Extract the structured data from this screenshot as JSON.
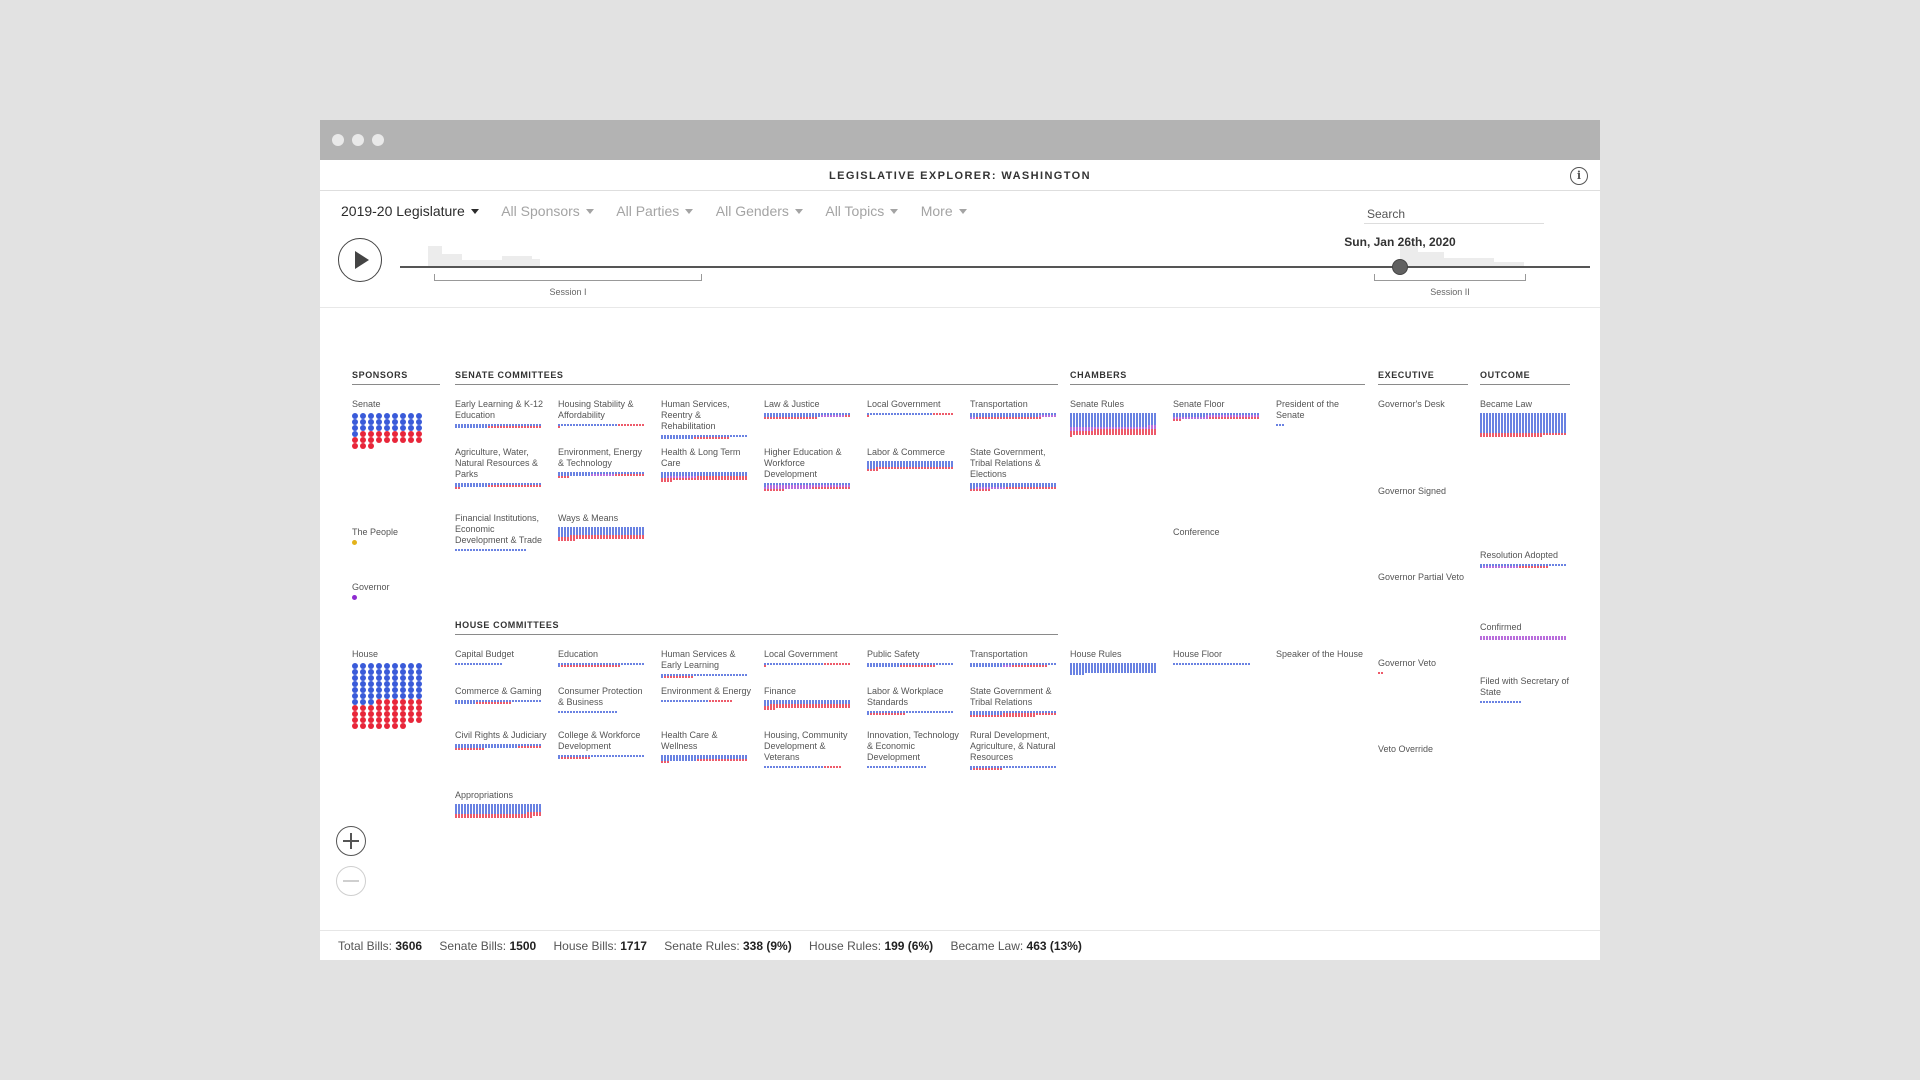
{
  "app_title": "LEGISLATIVE EXPLORER: WASHINGTON",
  "colors": {
    "dem": "#3a5bd9",
    "rep": "#e8263a",
    "other": "#a33fd1",
    "people": "#e3b21b",
    "governor": "#8e2bd0"
  },
  "filters": [
    {
      "label": "2019-20 Legislature"
    },
    {
      "label": "All Sponsors"
    },
    {
      "label": "All Parties"
    },
    {
      "label": "All Genders"
    },
    {
      "label": "All Topics"
    },
    {
      "label": "More"
    }
  ],
  "search": {
    "placeholder": "Search"
  },
  "timeline": {
    "date": "Sun, Jan 26th, 2020",
    "session1": "Session I",
    "session2": "Session II"
  },
  "sections": {
    "sponsors": "SPONSORS",
    "senate_committees": "SENATE COMMITTEES",
    "house_committees": "HOUSE COMMITTEES",
    "chambers": "CHAMBERS",
    "executive": "EXECUTIVE",
    "outcome": "OUTCOME"
  },
  "sponsors": {
    "senate": {
      "label": "Senate",
      "dem": 28,
      "rep": 20
    },
    "people": {
      "label": "The People"
    },
    "governor": {
      "label": "Governor"
    },
    "house": {
      "label": "House",
      "dem": 57,
      "rep": 40
    }
  },
  "senate_committees": [
    {
      "label": "Early Learning & K-12 Education",
      "b": 40,
      "r": 18,
      "p": 0
    },
    {
      "label": "Housing Stability & Affordability",
      "b": 20,
      "r": 10,
      "p": 0
    },
    {
      "label": "Human Services, Reentry & Rehabilitation",
      "b": 40,
      "r": 12,
      "p": 0
    },
    {
      "label": "Law & Justice",
      "b": 48,
      "r": 20,
      "p": 8
    },
    {
      "label": "Local Government",
      "b": 22,
      "r": 8,
      "p": 0
    },
    {
      "label": "Transportation",
      "b": 52,
      "r": 22,
      "p": 8
    },
    {
      "label": "Agriculture, Water, Natural Resources & Parks",
      "b": 40,
      "r": 20,
      "p": 0
    },
    {
      "label": "Environment, Energy & Technology",
      "b": 40,
      "r": 14,
      "p": 8
    },
    {
      "label": "Health & Long Term Care",
      "b": 60,
      "r": 50,
      "p": 10
    },
    {
      "label": "Higher Education & Workforce Development",
      "b": 30,
      "r": 20,
      "p": 44
    },
    {
      "label": "Labor & Commerce",
      "b": 90,
      "r": 30,
      "p": 0
    },
    {
      "label": "State Government, Tribal Relations & Elections",
      "b": 60,
      "r": 24,
      "p": 10
    },
    {
      "label": "Financial Institutions, Economic Development & Trade",
      "b": 24,
      "r": 0,
      "p": 0
    },
    {
      "label": "Ways & Means",
      "b": 120,
      "r": 60,
      "p": 0
    }
  ],
  "house_committees": [
    {
      "label": "Capital Budget",
      "b": 16,
      "r": 0,
      "p": 0
    },
    {
      "label": "Education",
      "b": 30,
      "r": 20,
      "p": 0
    },
    {
      "label": "Human Services & Early Learning",
      "b": 30,
      "r": 10,
      "p": 0
    },
    {
      "label": "Local Government",
      "b": 20,
      "r": 10,
      "p": 0
    },
    {
      "label": "Public Safety",
      "b": 40,
      "r": 12,
      "p": 0
    },
    {
      "label": "Transportation",
      "b": 40,
      "r": 12,
      "p": 3
    },
    {
      "label": "Commerce & Gaming",
      "b": 36,
      "r": 12,
      "p": 0
    },
    {
      "label": "Consumer Protection & Business",
      "b": 20,
      "r": 0,
      "p": 0
    },
    {
      "label": "Environment & Energy",
      "b": 16,
      "r": 8,
      "p": 0
    },
    {
      "label": "Finance",
      "b": 60,
      "r": 60,
      "p": 0
    },
    {
      "label": "Labor & Workplace Standards",
      "b": 30,
      "r": 12,
      "p": 0
    },
    {
      "label": "State Government & Tribal Relations",
      "b": 40,
      "r": 40,
      "p": 0
    },
    {
      "label": "Civil Rights & Judiciary",
      "b": 50,
      "r": 18,
      "p": 0
    },
    {
      "label": "College & Workforce Development",
      "b": 30,
      "r": 10,
      "p": 0
    },
    {
      "label": "Health Care & Wellness",
      "b": 70,
      "r": 20,
      "p": 0
    },
    {
      "label": "Housing, Community Development & Veterans",
      "b": 20,
      "r": 6,
      "p": 0
    },
    {
      "label": "Innovation, Technology & Economic Development",
      "b": 20,
      "r": 0,
      "p": 0
    },
    {
      "label": "Rural Development, Agriculture, & Natural Resources",
      "b": 30,
      "r": 10,
      "p": 0
    },
    {
      "label": "Appropriations",
      "b": 140,
      "r": 60,
      "p": 0
    }
  ],
  "chambers": [
    {
      "label": "Senate Rules",
      "b": 200,
      "r": 80,
      "p": 40
    },
    {
      "label": "Senate Floor",
      "b": 40,
      "r": 20,
      "p": 30
    },
    {
      "label": "President of the Senate",
      "b": 3,
      "r": 0,
      "p": 0
    },
    {
      "label": "Conference",
      "b": 0,
      "r": 0,
      "p": 0
    },
    {
      "label": "House Rules",
      "b": 150,
      "r": 0,
      "p": 0
    },
    {
      "label": "House Floor",
      "b": 26,
      "r": 0,
      "p": 0
    },
    {
      "label": "Speaker of the House",
      "b": 0,
      "r": 0,
      "p": 0
    }
  ],
  "executive": [
    {
      "label": "Governor's Desk",
      "b": 0,
      "r": 0,
      "p": 0
    },
    {
      "label": "Governor Signed",
      "b": 0,
      "r": 0,
      "p": 0
    },
    {
      "label": "Governor Partial Veto",
      "b": 0,
      "r": 0,
      "p": 0
    },
    {
      "label": "Governor Veto",
      "b": 0,
      "r": 2,
      "p": 0
    },
    {
      "label": "Veto Override",
      "b": 0,
      "r": 0,
      "p": 0
    }
  ],
  "outcome": [
    {
      "label": "Became Law",
      "b": 290,
      "r": 50,
      "p": 0
    },
    {
      "label": "Resolution Adopted",
      "b": 30,
      "r": 10,
      "p": 12
    },
    {
      "label": "Confirmed",
      "b": 0,
      "r": 0,
      "p": 58
    },
    {
      "label": "Filed with Secretary of State",
      "b": 14,
      "r": 0,
      "p": 0
    }
  ],
  "footer": [
    {
      "label": "Total Bills:",
      "value": "3606"
    },
    {
      "label": "Senate Bills:",
      "value": "1500"
    },
    {
      "label": "House Bills:",
      "value": "1717"
    },
    {
      "label": "Senate Rules:",
      "value": "338 (9%)"
    },
    {
      "label": "House Rules:",
      "value": "199 (6%)"
    },
    {
      "label": "Became Law:",
      "value": "463 (13%)"
    }
  ]
}
